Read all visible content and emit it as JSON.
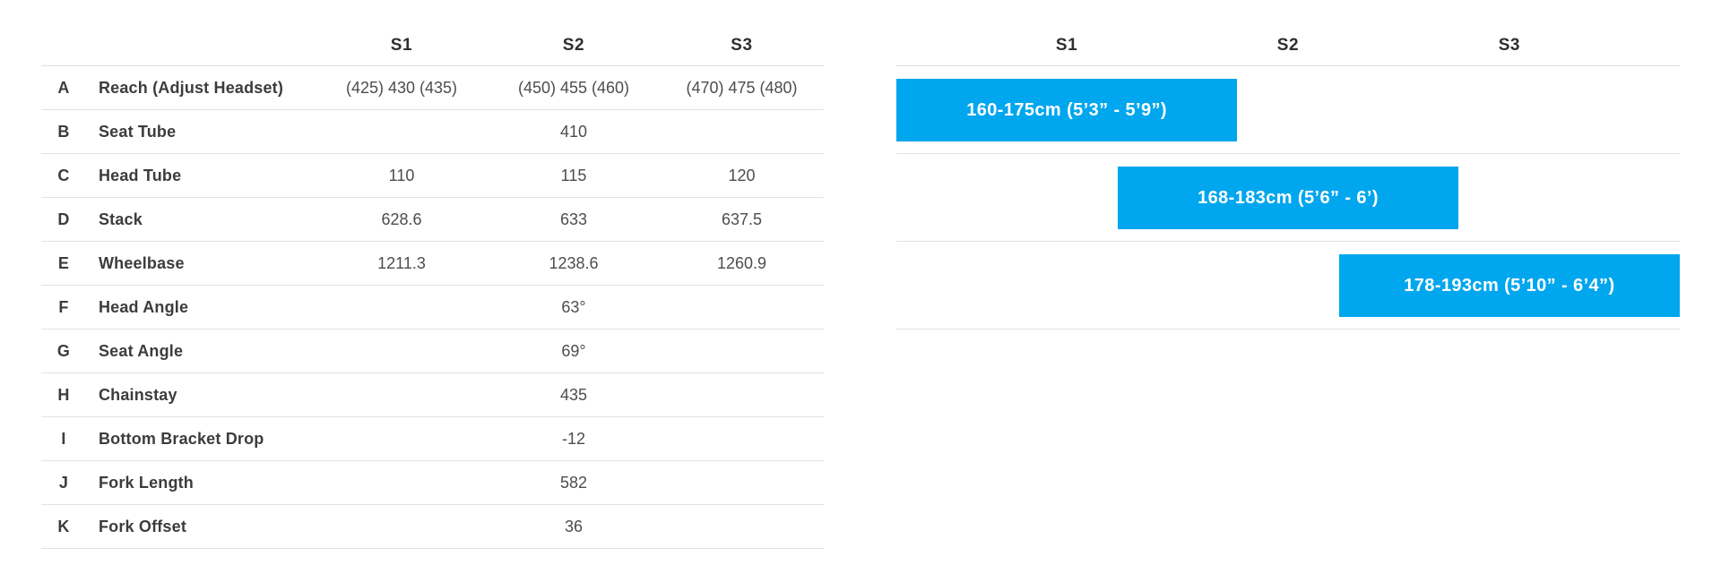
{
  "chart_data": [
    {
      "type": "table",
      "columns": [
        "",
        "",
        "S1",
        "S2",
        "S3"
      ],
      "rows": [
        [
          "A",
          "Reach (Adjust Headset)",
          "(425) 430 (435)",
          "(450) 455 (460)",
          "(470) 475 (480)"
        ],
        [
          "B",
          "Seat Tube",
          "",
          "410",
          ""
        ],
        [
          "C",
          "Head Tube",
          "110",
          "115",
          "120"
        ],
        [
          "D",
          "Stack",
          "628.6",
          "633",
          "637.5"
        ],
        [
          "E",
          "Wheelbase",
          "1211.3",
          "1238.6",
          "1260.9"
        ],
        [
          "F",
          "Head Angle",
          "",
          "63°",
          ""
        ],
        [
          "G",
          "Seat Angle",
          "",
          "69°",
          ""
        ],
        [
          "H",
          "Chainstay",
          "",
          "435",
          ""
        ],
        [
          "I",
          "Bottom Bracket Drop",
          "",
          "-12",
          ""
        ],
        [
          "J",
          "Fork Length",
          "",
          "582",
          ""
        ],
        [
          "K",
          "Fork Offset",
          "",
          "36",
          ""
        ]
      ]
    },
    {
      "type": "bar",
      "orientation": "horizontal-range",
      "categories": [
        "S1",
        "S2",
        "S3"
      ],
      "bars": [
        {
          "size": "S1",
          "label": "160-175cm (5’3” - 5’9”)",
          "height_cm_min": 160,
          "height_cm_max": 175
        },
        {
          "size": "S2",
          "label": "168-183cm (5’6” - 6’)",
          "height_cm_min": 168,
          "height_cm_max": 183
        },
        {
          "size": "S3",
          "label": "178-193cm (5’10” - 6’4”)",
          "height_cm_min": 178,
          "height_cm_max": 193
        }
      ],
      "legend_position": "none",
      "grid": "row-separator-lines"
    }
  ],
  "colors": {
    "bar_blue": "#00a6ee",
    "bar_text": "#ffffff",
    "table_text": "#3c3c3c",
    "value_text": "#4d4d4d",
    "separator_line": "#e3e3e3"
  }
}
